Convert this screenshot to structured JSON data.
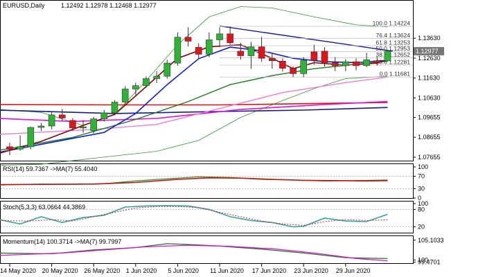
{
  "header": {
    "symbol": "EURUSD,Daily",
    "ohlc": "1.12492 1.12978 1.12468 1.12977"
  },
  "price_badge": "1.12977",
  "colors": {
    "bull": "#2db336",
    "bear": "#e3121b",
    "badge": "#777777",
    "ma_fast": "#8b0000",
    "ma_mid": "#0a1fd6",
    "ma_slow": "#1e7a1e",
    "ma_pink": "#f07ad8",
    "ma_red": "#e01010",
    "ma_navy": "#141a8c",
    "ma_magenta": "#e010d8",
    "bands": "#2a9a2a",
    "trend": "#141a8c",
    "rsi": "#2a9a2a",
    "rsi_ma": "#c81010",
    "stoch": "#2aa6a6",
    "stoch_signal": "#d02020",
    "mom": "#1e7a1e",
    "mom_ma": "#e010d8"
  },
  "chart_data": {
    "type": "candlestick",
    "ylim": [
      1.0748,
      1.1548
    ],
    "ticks": [
      "1.13630",
      "1.12630",
      "1.11630",
      "1.10630",
      "1.09655",
      "1.08655",
      "1.07655"
    ],
    "tick_values": [
      1.1363,
      1.1263,
      1.1163,
      1.1063,
      1.09655,
      1.08655,
      1.07655
    ],
    "x_labels": [
      "14 May 2020",
      "20 May 2020",
      "26 May 2020",
      "1 Jun 2020",
      "5 Jun 2020",
      "11 Jun 2020",
      "17 Jun 2020",
      "23 Jun 2020",
      "29 Jun 2020"
    ],
    "x_label_index": [
      0,
      4,
      8,
      12,
      16,
      20,
      24,
      28,
      32
    ],
    "candles": [
      {
        "o": 1.0818,
        "h": 1.0838,
        "l": 1.0775,
        "c": 1.0805
      },
      {
        "o": 1.0806,
        "h": 1.0876,
        "l": 1.0798,
        "c": 1.0818
      },
      {
        "o": 1.0818,
        "h": 1.0918,
        "l": 1.0805,
        "c": 1.0915
      },
      {
        "o": 1.0915,
        "h": 1.0938,
        "l": 1.0898,
        "c": 1.0922
      },
      {
        "o": 1.0922,
        "h": 1.0992,
        "l": 1.0905,
        "c": 1.0978
      },
      {
        "o": 1.0978,
        "h": 1.1008,
        "l": 1.0948,
        "c": 1.0962
      },
      {
        "o": 1.095,
        "h": 1.0962,
        "l": 1.0898,
        "c": 1.0912
      },
      {
        "o": 1.0912,
        "h": 1.0952,
        "l": 1.0888,
        "c": 1.0918
      },
      {
        "o": 1.0898,
        "h": 1.0968,
        "l": 1.0885,
        "c": 1.0958
      },
      {
        "o": 1.0958,
        "h": 1.1002,
        "l": 1.0945,
        "c": 1.0988
      },
      {
        "o": 1.0988,
        "h": 1.1052,
        "l": 1.098,
        "c": 1.1042
      },
      {
        "o": 1.1042,
        "h": 1.1122,
        "l": 1.103,
        "c": 1.1108
      },
      {
        "o": 1.1108,
        "h": 1.114,
        "l": 1.1078,
        "c": 1.1125
      },
      {
        "o": 1.1125,
        "h": 1.1172,
        "l": 1.1115,
        "c": 1.116
      },
      {
        "o": 1.116,
        "h": 1.1198,
        "l": 1.1138,
        "c": 1.1172
      },
      {
        "o": 1.1172,
        "h": 1.1255,
        "l": 1.116,
        "c": 1.1238
      },
      {
        "o": 1.1238,
        "h": 1.1392,
        "l": 1.1225,
        "c": 1.1368
      },
      {
        "o": 1.1368,
        "h": 1.1418,
        "l": 1.1322,
        "c": 1.1348
      },
      {
        "o": 1.1318,
        "h": 1.1338,
        "l": 1.1258,
        "c": 1.1282
      },
      {
        "o": 1.1282,
        "h": 1.1392,
        "l": 1.1268,
        "c": 1.1355
      },
      {
        "o": 1.1355,
        "h": 1.1418,
        "l": 1.1318,
        "c": 1.1385
      },
      {
        "o": 1.1385,
        "h": 1.1422,
        "l": 1.133,
        "c": 1.134
      },
      {
        "o": 1.1298,
        "h": 1.134,
        "l": 1.1255,
        "c": 1.1275
      },
      {
        "o": 1.1275,
        "h": 1.1345,
        "l": 1.121,
        "c": 1.132
      },
      {
        "o": 1.132,
        "h": 1.137,
        "l": 1.1245,
        "c": 1.1262
      },
      {
        "o": 1.1262,
        "h": 1.1288,
        "l": 1.121,
        "c": 1.125
      },
      {
        "o": 1.1248,
        "h": 1.1262,
        "l": 1.1196,
        "c": 1.1212
      },
      {
        "o": 1.1212,
        "h": 1.1222,
        "l": 1.1168,
        "c": 1.1185
      },
      {
        "o": 1.1185,
        "h": 1.1268,
        "l": 1.1168,
        "c": 1.1252
      },
      {
        "o": 1.1295,
        "h": 1.133,
        "l": 1.123,
        "c": 1.1252
      },
      {
        "o": 1.1298,
        "h": 1.1318,
        "l": 1.122,
        "c": 1.124
      },
      {
        "o": 1.124,
        "h": 1.1268,
        "l": 1.1198,
        "c": 1.1225
      },
      {
        "o": 1.1225,
        "h": 1.1258,
        "l": 1.1198,
        "c": 1.1245
      },
      {
        "o": 1.1245,
        "h": 1.1262,
        "l": 1.1202,
        "c": 1.1225
      },
      {
        "o": 1.1225,
        "h": 1.129,
        "l": 1.1218,
        "c": 1.1255
      },
      {
        "o": 1.125,
        "h": 1.1268,
        "l": 1.1225,
        "c": 1.124
      },
      {
        "o": 1.1249,
        "h": 1.1298,
        "l": 1.1247,
        "c": 1.1298
      }
    ],
    "fibonacci": [
      {
        "label": "100.0 1.14224",
        "value": 1.14224
      },
      {
        "label": "76.4 1.13624",
        "value": 1.13624
      },
      {
        "label": "61.8 1.13253",
        "value": 1.13253
      },
      {
        "label": "50.0 1.12953",
        "value": 1.12953
      },
      {
        "label": "38.2 1.12652",
        "value": 1.12652
      },
      {
        "label": "23.6 1.12281",
        "value": 1.12281
      },
      {
        "label": "0.0 1.11681",
        "value": 1.11681
      }
    ],
    "rsi": {
      "label": "RSI(14) 59.7367 ->MA(7) 55.4040",
      "ticks": [
        "100",
        "70",
        "30",
        "0"
      ],
      "tick_values": [
        100,
        70,
        30,
        0
      ]
    },
    "stoch": {
      "label": "Stoch(5,3,3) 63.0664 44.3869",
      "ticks": [
        "100",
        "80",
        "20"
      ],
      "tick_values": [
        100,
        80,
        20
      ]
    },
    "momentum": {
      "label": "Momentum(14) 100.3714 ->MA(7) 99.7997",
      "ticks": [
        "105.1033",
        "100",
        "99.4701"
      ],
      "tick_values": [
        105.1033,
        100,
        99.4701
      ]
    }
  }
}
